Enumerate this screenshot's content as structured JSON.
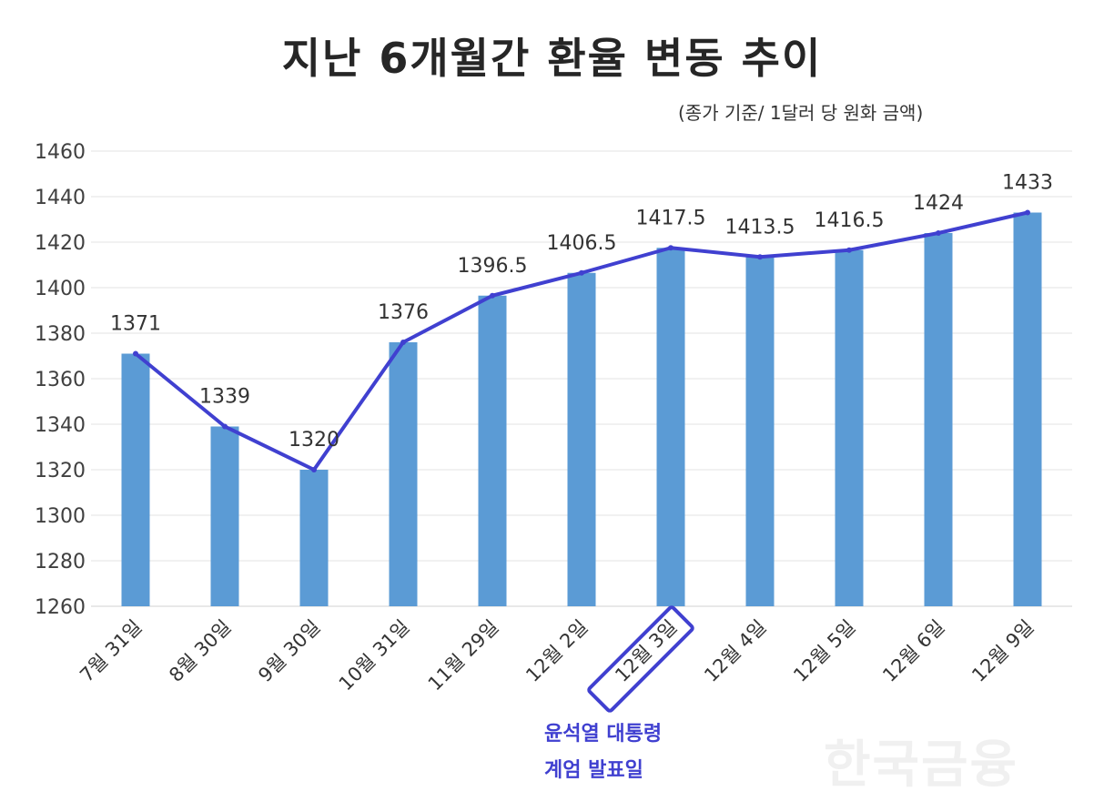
{
  "chart_data": {
    "type": "bar",
    "title": "지난 6개월간 환율 변동 추이",
    "subtitle": "(종가 기준/ 1달러 당 원화 금액)",
    "categories": [
      "7월 31일",
      "8월 30일",
      "9월 30일",
      "10월 31일",
      "11월 29일",
      "12월 2일",
      "12월 3일",
      "12월 4일",
      "12월 5일",
      "12월 6일",
      "12월 9일"
    ],
    "values": [
      1371,
      1339,
      1320,
      1376,
      1396.5,
      1406.5,
      1417.5,
      1413.5,
      1416.5,
      1424,
      1433
    ],
    "data_labels": [
      "1371",
      "1339",
      "1320",
      "1376",
      "1396.5",
      "1406.5",
      "1417.5",
      "1413.5",
      "1416.5",
      "1424",
      "1433"
    ],
    "overlay_line": true,
    "ylim": [
      1260,
      1460
    ],
    "yticks": [
      1260,
      1280,
      1300,
      1320,
      1340,
      1360,
      1380,
      1400,
      1420,
      1440,
      1460
    ],
    "grid": true,
    "xlabel": "",
    "ylabel": "",
    "highlighted_category": "12월 3일",
    "annotation": [
      "윤석열 대통령",
      "계엄 발표일"
    ],
    "colors": {
      "bar": "#5b9bd5",
      "line": "#4040d0",
      "annotation": "#4040d0"
    }
  },
  "watermark": "한국금융"
}
